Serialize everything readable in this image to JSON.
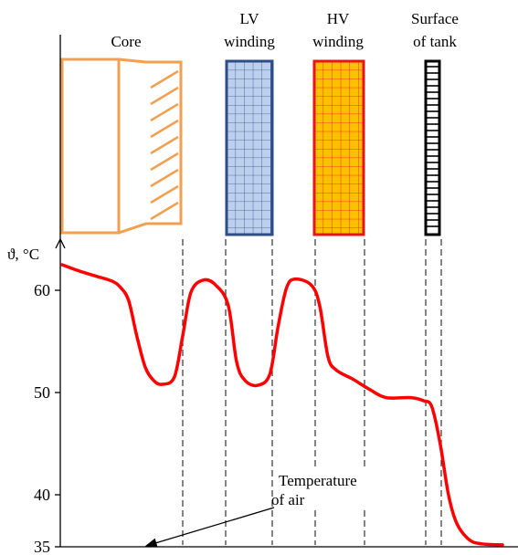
{
  "labels": {
    "core": "Core",
    "lv_line1": "LV",
    "lv_line2": "winding",
    "hv_line1": "HV",
    "hv_line2": "winding",
    "tank_line1": "Surface",
    "tank_line2": "of tank",
    "y_axis": "ϑ, °C",
    "air_line1": "Temperature",
    "air_line2": "of air"
  },
  "colors": {
    "core": "#f0a050",
    "lv_fill": "#bcd0ee",
    "lv_border": "#2e4d86",
    "hv_fill": "#ffc000",
    "hv_border": "#e8141c",
    "tank": "#000000",
    "curve": "#ff0000",
    "axis": "#000000"
  },
  "chart_data": {
    "type": "line",
    "ylabel": "ϑ, °C",
    "yticks": [
      35,
      40,
      50,
      60
    ],
    "ylim": [
      35,
      65
    ],
    "series": [
      {
        "points": [
          [
            0,
            62.5
          ],
          [
            0.2,
            61.9
          ],
          [
            0.4,
            61.4
          ],
          [
            0.6,
            60.9
          ],
          [
            0.7,
            60.3
          ],
          [
            0.8,
            59.0
          ],
          [
            0.9,
            55.5
          ],
          [
            1.0,
            52.5
          ],
          [
            1.1,
            51.2
          ],
          [
            1.2,
            50.8
          ],
          [
            1.35,
            51.5
          ],
          [
            1.45,
            55.5
          ],
          [
            1.55,
            59.8
          ],
          [
            1.7,
            61.0
          ],
          [
            1.85,
            60.5
          ],
          [
            2.0,
            58.5
          ],
          [
            2.1,
            53.0
          ],
          [
            2.2,
            51.2
          ],
          [
            2.35,
            50.7
          ],
          [
            2.5,
            51.8
          ],
          [
            2.6,
            56.5
          ],
          [
            2.7,
            60.2
          ],
          [
            2.8,
            61.1
          ],
          [
            3.0,
            60.5
          ],
          [
            3.1,
            58.5
          ],
          [
            3.2,
            53.5
          ],
          [
            3.3,
            52.2
          ],
          [
            3.5,
            51.3
          ],
          [
            3.7,
            50.3
          ],
          [
            3.9,
            49.5
          ],
          [
            4.2,
            49.5
          ],
          [
            4.35,
            49.2
          ],
          [
            4.45,
            48.6
          ],
          [
            4.55,
            45.0
          ],
          [
            4.65,
            40.0
          ],
          [
            4.75,
            37.2
          ],
          [
            4.9,
            35.6
          ],
          [
            5.05,
            35.2
          ],
          [
            5.3,
            35.1
          ]
        ]
      }
    ],
    "annotations": [
      {
        "text": "Temperature of air",
        "points_to": [
          0.9,
          35
        ]
      }
    ]
  }
}
